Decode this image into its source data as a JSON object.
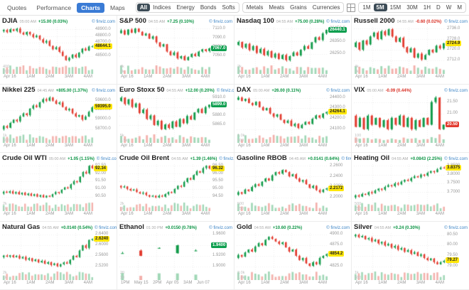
{
  "brand_note": "© finviz.com",
  "topbar": {
    "tabs": [
      "Quotes",
      "Performance",
      "Charts",
      "Maps"
    ],
    "active_tab": "Charts",
    "filter_groups": [
      {
        "items": [
          "All",
          "Indices",
          "Energy",
          "Bonds",
          "Softs"
        ],
        "active": "All"
      },
      {
        "items": [
          "Metals",
          "Meats",
          "Grains",
          "Currencies"
        ],
        "active": ""
      }
    ],
    "timeframes": {
      "items": [
        "1M",
        "5M",
        "15M",
        "30M",
        "1H",
        "D",
        "W",
        "M"
      ],
      "active": "5M"
    }
  },
  "colors": {
    "up_green": "#0b9444",
    "down_red": "#d93025",
    "candle_green": "#119a49",
    "candle_red": "#e23a2e",
    "accent_blue": "#3a7bd5",
    "dark_pill": "#3d4c57",
    "tag_yellow": "#ffe70a",
    "brand_blue": "#3d85c6"
  },
  "chart_data": [
    {
      "type": "candlestick",
      "name": "DJIA",
      "time": "05:00 AM",
      "change": "+15.00 (0.03%)",
      "direction": "up",
      "last": "48644.1",
      "tag_color": "yellow",
      "ticks": [
        "48900.0",
        "48800.0",
        "48700.0",
        "48600.0",
        "48500.0"
      ],
      "vol_ticks": [
        "400",
        "200"
      ],
      "x_labels": [
        "Apr 16",
        "1AM",
        "2AM",
        "3AM",
        "4AM"
      ],
      "sparse": false,
      "series": [
        48870,
        48890,
        48855,
        48900,
        48875,
        48910,
        48850,
        48820,
        48860,
        48825,
        48780,
        48805,
        48750,
        48700,
        48725,
        48650,
        48600,
        48630,
        48560,
        48500,
        48435,
        48470,
        48520,
        48480,
        48550,
        48610,
        48580,
        48640,
        48644.1
      ]
    },
    {
      "type": "candlestick",
      "name": "S&P 500",
      "time": "04:55 AM",
      "change": "+7.25 (0.10%)",
      "direction": "up",
      "last": "7067.0",
      "tag_color": "green",
      "ticks": [
        "7110.0",
        "7090.0",
        "7070.0",
        "7050.0"
      ],
      "vol_ticks": [
        "4k",
        "2k"
      ],
      "x_labels": [
        "Apr 16",
        "1AM",
        "2AM",
        "3AM",
        "4AM"
      ],
      "sparse": false,
      "series": [
        7100,
        7106,
        7097,
        7108,
        7101,
        7110,
        7103,
        7095,
        7099,
        7088,
        7093,
        7080,
        7071,
        7076,
        7060,
        7052,
        7058,
        7045,
        7050,
        7041,
        7048,
        7055,
        7050,
        7060,
        7065,
        7061,
        7067
      ]
    },
    {
      "type": "candlestick",
      "name": "Nasdaq 100",
      "time": "04:55 AM",
      "change": "+75.00 (0.28%)",
      "direction": "up",
      "last": "26440.1",
      "tag_color": "green",
      "ticks": [
        "26450.0",
        "26350.0",
        "26250.0"
      ],
      "vol_ticks": [
        "2k",
        "1k"
      ],
      "x_labels": [
        "Apr 16",
        "1AM",
        "2AM",
        "3AM",
        "4AM"
      ],
      "sparse": false,
      "series": [
        26320,
        26345,
        26300,
        26330,
        26280,
        26312,
        26258,
        26290,
        26240,
        26272,
        26222,
        26252,
        26210,
        26242,
        26200,
        26232,
        26262,
        26238,
        26282,
        26312,
        26290,
        26342,
        26382,
        26360,
        26412,
        26440.1
      ]
    },
    {
      "type": "candlestick",
      "name": "Russell 2000",
      "time": "04:55 AM",
      "change": "-0.60 (0.02%)",
      "direction": "down",
      "last": "2724.9",
      "tag_color": "yellow",
      "ticks": [
        "2736.0",
        "2728.0",
        "2720.0",
        "2712.0"
      ],
      "vol_ticks": [
        "4k",
        "2k"
      ],
      "x_labels": [
        "Apr 16",
        "1AM",
        "2AM",
        "3AM",
        "4AM"
      ],
      "sparse": false,
      "series": [
        2722,
        2725.5,
        2720,
        2727,
        2724,
        2730,
        2733,
        2728,
        2734,
        2731,
        2735.5,
        2730,
        2726,
        2729,
        2722,
        2718,
        2721,
        2714,
        2717,
        2712.5,
        2716,
        2720,
        2718,
        2723,
        2721,
        2724.9
      ]
    },
    {
      "type": "candlestick",
      "name": "Nikkei 225",
      "time": "04:45 AM",
      "change": "+805.00 (1.37%)",
      "direction": "up",
      "last": "59395.0",
      "tag_color": "yellow",
      "ticks": [
        "59600.0",
        "59300.0",
        "59000.0",
        "58700.0"
      ],
      "vol_ticks": [
        "1k",
        "500"
      ],
      "x_labels": [
        "Apr 16",
        "1AM",
        "2AM",
        "3AM",
        "4AM"
      ],
      "sparse": false,
      "series": [
        58700,
        58800,
        58745,
        58900,
        59000,
        58950,
        59100,
        59200,
        59145,
        59350,
        59450,
        59395,
        59550,
        59650,
        59600,
        59700,
        59600,
        59500,
        59545,
        59400,
        59300,
        59345,
        59200,
        59100,
        59145,
        59000,
        59100,
        59250,
        59395
      ]
    },
    {
      "type": "candlestick",
      "name": "Euro Stoxx 50",
      "time": "04:55 AM",
      "change": "+12.00 (0.20%)",
      "direction": "up",
      "last": "5899.0",
      "tag_color": "green",
      "ticks": [
        "5910.0",
        "5895.0",
        "5880.0",
        "5865.0"
      ],
      "vol_ticks": [
        "5k",
        "2.5k"
      ],
      "x_labels": [
        "Apr 16",
        "1AM",
        "2AM",
        "3AM",
        "4AM"
      ],
      "sparse": false,
      "series": [
        5905,
        5911,
        5900,
        5908,
        5895,
        5901,
        5885,
        5891,
        5875,
        5881,
        5865,
        5872,
        5858,
        5866,
        5860,
        5871,
        5862,
        5875,
        5868,
        5880,
        5874,
        5886,
        5892,
        5885,
        5895,
        5899
      ]
    },
    {
      "type": "candlestick",
      "name": "DAX",
      "time": "05:00 AM",
      "change": "+26.00 (0.11%)",
      "direction": "up",
      "last": "24264.1",
      "tag_color": "yellow",
      "ticks": [
        "24400.0",
        "24300.0",
        "24200.0",
        "24100.0"
      ],
      "vol_ticks": [
        "1.0k",
        "500"
      ],
      "x_labels": [
        "Apr 16",
        "1AM",
        "2AM",
        "3AM",
        "4AM"
      ],
      "sparse": false,
      "series": [
        24380,
        24402,
        24370,
        24390,
        24350,
        24330,
        24362,
        24310,
        24280,
        24302,
        24250,
        24220,
        24242,
        24190,
        24160,
        24182,
        24130,
        24152,
        24110,
        24142,
        24170,
        24150,
        24200,
        24232,
        24210,
        24250,
        24264.1
      ]
    },
    {
      "type": "candlestick",
      "name": "VIX",
      "time": "05:00 AM",
      "change": "-0.09 (0.44%)",
      "direction": "down",
      "last": "20.50",
      "tag_color": "red",
      "ticks": [
        "21.50",
        "21.00",
        "20.50"
      ],
      "vol_ticks": [
        "100",
        "50"
      ],
      "x_labels": [
        "Apr 16",
        "1AM",
        "2AM",
        "3AM",
        "4AM"
      ],
      "sparse": false,
      "series": [
        20.9,
        20.4,
        20.8,
        20.3,
        20.9,
        20.5,
        20.8,
        20.4,
        20.7,
        20.3,
        20.8,
        20.5,
        20.9,
        20.4,
        20.8,
        20.3,
        20.7,
        20.4,
        20.8,
        20.5,
        21.5,
        21.7,
        20.3,
        20.5
      ]
    },
    {
      "type": "candlestick",
      "name": "Crude Oil WTI",
      "time": "05:00 AM",
      "change": "+1.05 (1.15%)",
      "direction": "up",
      "last": "92.34",
      "tag_color": "yellow",
      "ticks": [
        "92.50",
        "92.00",
        "91.50",
        "91.00",
        "90.50"
      ],
      "vol_ticks": [
        "2k",
        "1k"
      ],
      "x_labels": [
        "Apr 16",
        "1AM",
        "2AM",
        "3AM",
        "4AM"
      ],
      "sparse": false,
      "series": [
        90.7,
        90.82,
        90.75,
        90.85,
        90.7,
        90.8,
        90.65,
        90.76,
        90.6,
        90.7,
        90.55,
        90.66,
        90.5,
        90.6,
        90.45,
        90.56,
        90.5,
        90.66,
        90.8,
        90.74,
        90.95,
        91.1,
        91.04,
        91.3,
        91.5,
        91.44,
        91.8,
        92.1,
        92.0,
        92.5,
        92.34
      ]
    },
    {
      "type": "candlestick",
      "name": "Crude Oil Brent",
      "time": "04:55 AM",
      "change": "+1.39 (1.46%)",
      "direction": "up",
      "last": "96.32",
      "tag_color": "yellow",
      "ticks": [
        "96.50",
        "96.00",
        "95.50",
        "95.00",
        "94.50"
      ],
      "vol_ticks": [
        "2k",
        "1k"
      ],
      "x_labels": [
        "Apr 16",
        "1AM",
        "2AM",
        "3AM",
        "4AM"
      ],
      "sparse": false,
      "series": [
        95.2,
        95.1,
        95.16,
        95.0,
        94.9,
        94.96,
        94.8,
        94.7,
        94.76,
        94.6,
        94.5,
        94.56,
        94.45,
        94.56,
        94.5,
        94.66,
        94.8,
        94.74,
        95.0,
        95.2,
        95.14,
        95.45,
        95.7,
        95.6,
        95.9,
        96.15,
        96.05,
        96.35,
        96.5,
        96.32
      ]
    },
    {
      "type": "candlestick",
      "name": "Gasoline RBOB",
      "time": "04:45 AM",
      "change": "+0.0141 (0.64%)",
      "direction": "up",
      "last": "2.2172",
      "tag_color": "yellow",
      "ticks": [
        "2.2600",
        "2.2400",
        "2.2200",
        "2.2000"
      ],
      "vol_ticks": [
        "500",
        "250"
      ],
      "x_labels": [
        "Apr 16",
        "1AM",
        "2AM",
        "3AM",
        "4AM"
      ],
      "sparse": false,
      "series": [
        2.205,
        2.21,
        2.207,
        2.215,
        2.212,
        2.22,
        2.225,
        2.222,
        2.23,
        2.236,
        2.232,
        2.242,
        2.248,
        2.245,
        2.252,
        2.248,
        2.24,
        2.244,
        2.236,
        2.23,
        2.233,
        2.225,
        2.218,
        2.222,
        2.214,
        2.21,
        2.215,
        2.2172
      ]
    },
    {
      "type": "candlestick",
      "name": "Heating Oil",
      "time": "04:55 AM",
      "change": "+0.0843 (2.25%)",
      "direction": "up",
      "last": "3.8375",
      "tag_color": "yellow",
      "ticks": [
        "3.8500",
        "3.8000",
        "3.7500",
        "3.7000"
      ],
      "vol_ticks": [
        "500",
        "250"
      ],
      "x_labels": [
        "Apr 16",
        "1AM",
        "2AM",
        "3AM",
        "4AM"
      ],
      "sparse": false,
      "series": [
        3.67,
        3.682,
        3.675,
        3.69,
        3.685,
        3.7,
        3.694,
        3.71,
        3.72,
        3.714,
        3.73,
        3.74,
        3.734,
        3.75,
        3.744,
        3.76,
        3.77,
        3.764,
        3.78,
        3.79,
        3.784,
        3.8,
        3.794,
        3.81,
        3.82,
        3.814,
        3.83,
        3.84,
        3.8375
      ]
    },
    {
      "type": "candlestick",
      "name": "Natural Gas",
      "time": "04:55 AM",
      "change": "+0.0140 (0.54%)",
      "direction": "up",
      "last": "2.6240",
      "tag_color": "yellow",
      "ticks": [
        "2.6400",
        "2.6000",
        "2.5600",
        "2.5200"
      ],
      "vol_ticks": [
        "2k",
        "1k"
      ],
      "x_labels": [
        "Apr 16",
        "1AM",
        "2AM",
        "3AM",
        "4AM"
      ],
      "sparse": false,
      "series": [
        2.555,
        2.561,
        2.557,
        2.562,
        2.555,
        2.56,
        2.55,
        2.556,
        2.545,
        2.551,
        2.54,
        2.546,
        2.535,
        2.541,
        2.53,
        2.536,
        2.525,
        2.531,
        2.52,
        2.528,
        2.535,
        2.53,
        2.545,
        2.56,
        2.555,
        2.58,
        2.6,
        2.59,
        2.62,
        2.624
      ]
    },
    {
      "type": "candlestick",
      "name": "Ethanol",
      "time": "01:30 PM",
      "change": "+0.0150 (0.78%)",
      "direction": "up",
      "last": "1.9400",
      "tag_color": "green",
      "ticks": [
        "1.9600",
        "1.9400",
        "1.9200",
        "1.9000"
      ],
      "vol_ticks": [
        "20",
        "10"
      ],
      "x_labels": [
        "1PM",
        "May 15",
        "2PM",
        "Apr 05",
        "3AM",
        "Jun 07"
      ],
      "sparse": true,
      "series": [
        1.925,
        1.925,
        1.93,
        1.93,
        1.92,
        1.92,
        1.935,
        1.935,
        1.925,
        1.925,
        1.94,
        1.94,
        1.93,
        1.93,
        1.94,
        1.94
      ]
    },
    {
      "type": "candlestick",
      "name": "Gold",
      "time": "04:55 AM",
      "change": "+10.60 (0.22%)",
      "direction": "up",
      "last": "4854.2",
      "tag_color": "yellow",
      "ticks": [
        "4900.0",
        "4875.0",
        "4850.0",
        "4825.0"
      ],
      "vol_ticks": [
        "2.0k",
        "1.0k"
      ],
      "x_labels": [
        "Apr 16",
        "1AM",
        "2AM",
        "3AM",
        "4AM"
      ],
      "sparse": false,
      "series": [
        4845,
        4852,
        4848,
        4858,
        4865,
        4860,
        4872,
        4880,
        4875,
        4888,
        4895,
        4890,
        4884,
        4878,
        4882,
        4870,
        4860,
        4865,
        4850,
        4840,
        4845,
        4832,
        4826,
        4835,
        4830,
        4845,
        4850,
        4854.2
      ]
    },
    {
      "type": "candlestick",
      "name": "Silver",
      "time": "04:55 AM",
      "change": "+0.24 (0.30%)",
      "direction": "up",
      "last": "79.27",
      "tag_color": "yellow",
      "ticks": [
        "80.50",
        "80.00",
        "79.50",
        "79.00"
      ],
      "vol_ticks": [
        "1k",
        "500"
      ],
      "x_labels": [
        "Apr 16",
        "1AM",
        "2AM",
        "3AM",
        "4AM"
      ],
      "sparse": false,
      "series": [
        80.45,
        80.52,
        80.4,
        80.46,
        80.3,
        80.36,
        80.2,
        80.28,
        80.1,
        80.18,
        80.0,
        80.08,
        79.9,
        79.98,
        79.8,
        79.88,
        79.7,
        79.78,
        79.6,
        79.68,
        79.5,
        79.58,
        79.4,
        79.3,
        79.38,
        79.2,
        79.1,
        79.2,
        79.27
      ]
    }
  ]
}
